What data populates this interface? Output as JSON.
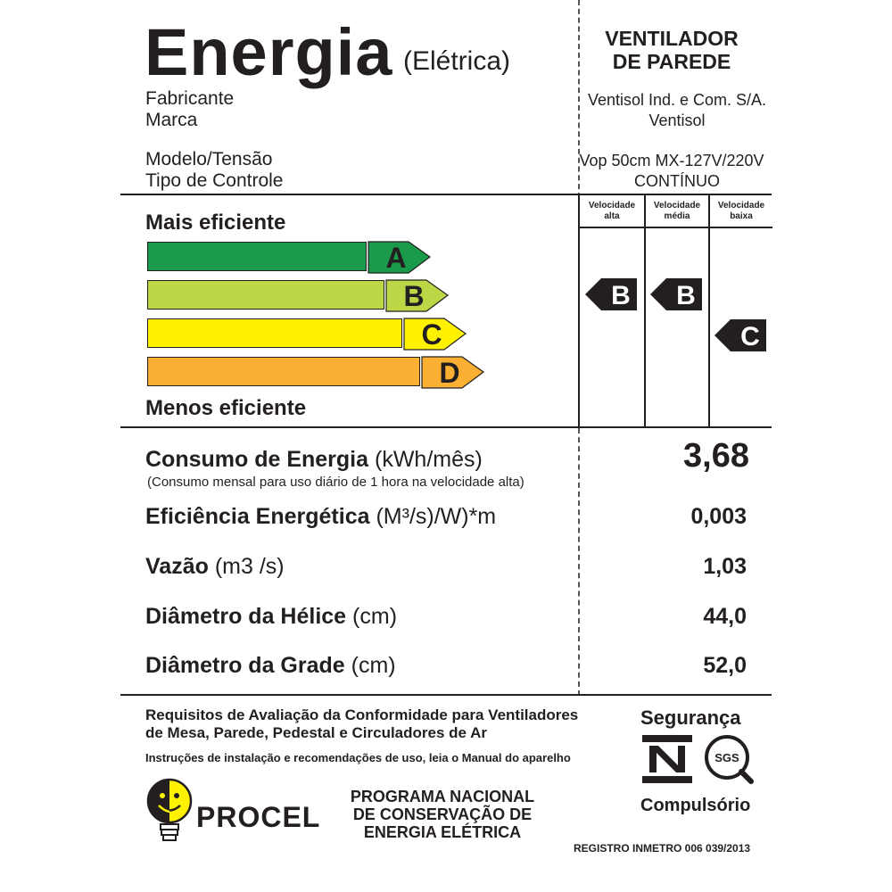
{
  "header": {
    "title": "Energia",
    "subtitle": "(Elétrica)",
    "product_line1": "VENTILADOR",
    "product_line2": "DE PAREDE"
  },
  "info": [
    {
      "label": "Fabricante",
      "value": "Ventisol Ind. e Com. S/A."
    },
    {
      "label": "Marca",
      "value": "Ventisol"
    },
    {
      "label": "Modelo/Tensão",
      "value": "Vop 50cm MX-127V/220V"
    },
    {
      "label": "Tipo de Controle",
      "value": "CONTÍNUO"
    }
  ],
  "scale": {
    "top_label": "Mais eficiente",
    "bottom_label": "Menos eficiente",
    "classes": [
      {
        "letter": "A",
        "color": "#1a9b4b",
        "arrow_color": "#1a9b4b"
      },
      {
        "letter": "B",
        "color": "#bcd745",
        "arrow_color": "#bcd745"
      },
      {
        "letter": "C",
        "color": "#fff200",
        "arrow_color": "#fff200"
      },
      {
        "letter": "D",
        "color": "#fbb034",
        "arrow_color": "#fbb034"
      }
    ]
  },
  "speeds": [
    {
      "line1": "Velocidade",
      "line2": "alta",
      "rating": "B"
    },
    {
      "line1": "Velocidade",
      "line2": "média",
      "rating": "B"
    },
    {
      "line1": "Velocidade",
      "line2": "baixa",
      "rating": "C"
    }
  ],
  "specs": {
    "consumo_bold": "Consumo de Energia",
    "consumo_unit": "(kWh/mês)",
    "consumo_note": "(Consumo mensal para uso diário de 1 hora na velocidade alta)",
    "consumo_value": "3,68",
    "eficiencia_bold": "Eficiência Energética",
    "eficiencia_unit": "(M³/s)/W)*m",
    "eficiencia_value": "0,003",
    "vazao_bold": "Vazão",
    "vazao_unit": "(m3 /s)",
    "vazao_value": "1,03",
    "helice_bold": "Diâmetro da Hélice",
    "helice_unit": "(cm)",
    "helice_value": "44,0",
    "grade_bold": "Diâmetro da Grade",
    "grade_unit": "(cm)",
    "grade_value": "52,0"
  },
  "footer": {
    "req_line1": "Requisitos de Avaliação da Conformidade para Ventiladores",
    "req_line2": "de Mesa, Parede, Pedestal e Circuladores de Ar",
    "instructions": "Instruções de instalação e recomendações de uso, leia o Manual do aparelho",
    "seguranca": "Segurança",
    "compulsorio": "Compulsório",
    "sgs": "SGS",
    "procel": "PROCEL",
    "programa_line1": "PROGRAMA NACIONAL",
    "programa_line2": "DE CONSERVAÇÃO DE",
    "programa_line3": "ENERGIA ELÉTRICA",
    "registro": "REGISTRO INMETRO 006 039/2013"
  }
}
